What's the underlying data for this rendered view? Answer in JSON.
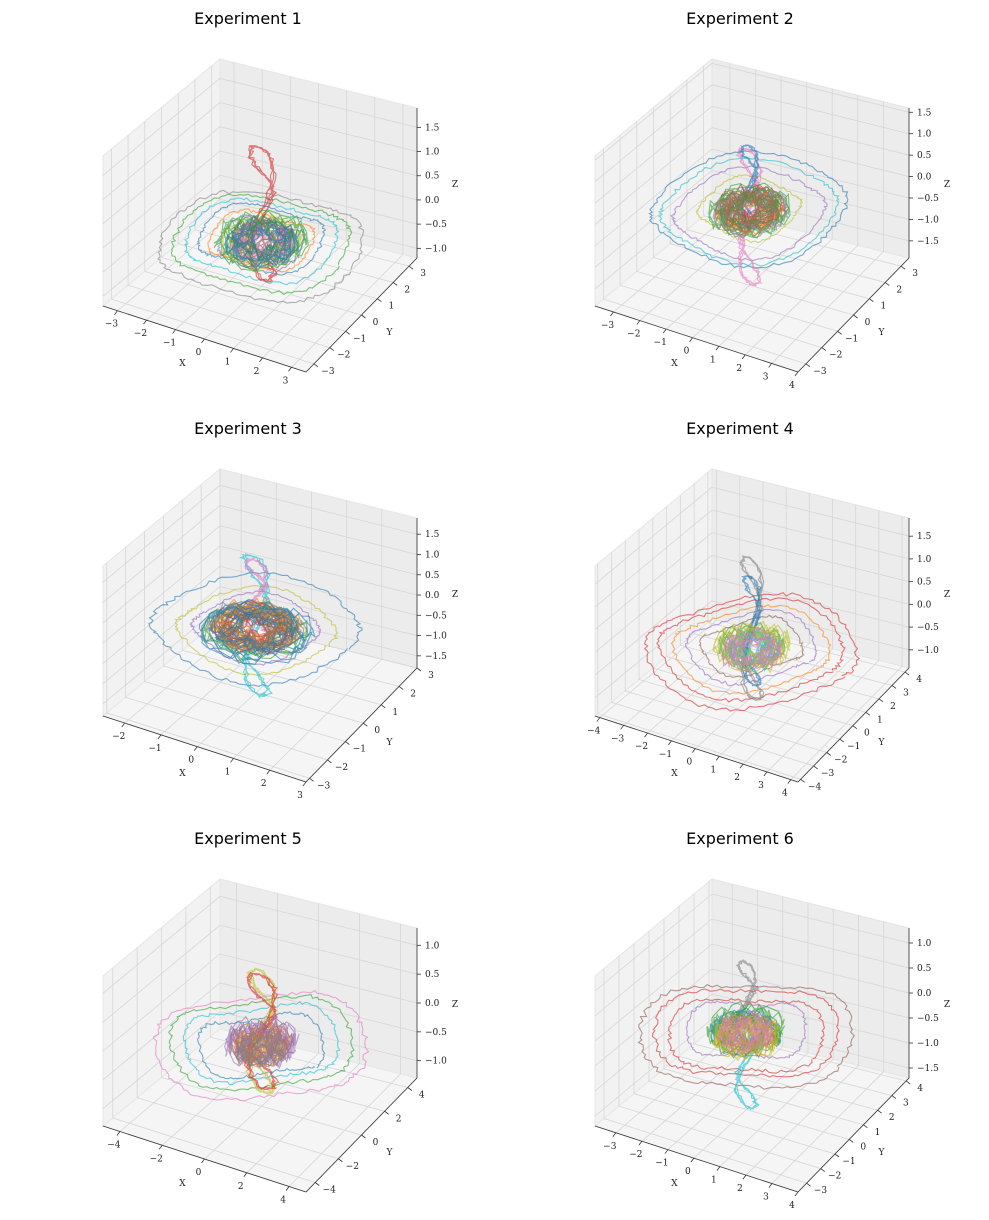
{
  "figure": {
    "panel_count": 6
  },
  "chart_data": [
    {
      "type": "line3d",
      "title": "Experiment 1",
      "xlabel": "X",
      "ylabel": "Y",
      "zlabel": "Z",
      "xticks": [
        -3,
        -2,
        -1,
        0,
        1,
        2,
        3
      ],
      "yticks": [
        -3,
        -2,
        -1,
        0,
        1,
        2,
        3
      ],
      "zticks": [
        -1.0,
        -0.5,
        0.0,
        0.5,
        1.0,
        1.5
      ],
      "xlim": [
        -3.5,
        3.5
      ],
      "ylim": [
        -3.5,
        3.5
      ],
      "zlim": [
        -1.2,
        1.9
      ],
      "series": [
        {
          "color": "#7f7f7f",
          "kind": "ring",
          "radius": 3.1,
          "z": -0.35
        },
        {
          "color": "#2ca02c",
          "kind": "ring",
          "radius": 2.7,
          "z": -0.3
        },
        {
          "color": "#17becf",
          "kind": "ring",
          "radius": 2.3,
          "z": -0.25
        },
        {
          "color": "#1f77b4",
          "kind": "ring",
          "radius": 1.9,
          "z": -0.2
        },
        {
          "color": "#ff7f0e",
          "kind": "ring",
          "radius": 1.6,
          "z": -0.25
        },
        {
          "color": "#9467bd",
          "kind": "ring",
          "radius": 1.3,
          "z": -0.3
        },
        {
          "color": "#d62728",
          "kind": "plume",
          "radius": 0.45,
          "zmin": -1.0,
          "zmax": 1.6
        },
        {
          "color": "#bcbd22",
          "kind": "blob",
          "radius": 1.2,
          "z": -0.3
        },
        {
          "color": "#8c564b",
          "kind": "blob",
          "radius": 0.9,
          "z": -0.2
        },
        {
          "color": "#e377c2",
          "kind": "blob",
          "radius": 1.0,
          "z": -0.35
        },
        {
          "color": "#2ca02c",
          "kind": "blob",
          "radius": 1.4,
          "z": -0.25
        },
        {
          "color": "#1f77b4",
          "kind": "blob",
          "radius": 1.1,
          "z": -0.3
        }
      ]
    },
    {
      "type": "line3d",
      "title": "Experiment 2",
      "xlabel": "X",
      "ylabel": "Y",
      "zlabel": "Z",
      "xticks": [
        -3,
        -2,
        -1,
        0,
        1,
        2,
        3,
        4
      ],
      "yticks": [
        -3,
        -2,
        -1,
        0,
        1,
        2,
        3
      ],
      "zticks": [
        -1.5,
        -1.0,
        -0.5,
        0.0,
        0.5,
        1.0,
        1.5
      ],
      "xlim": [
        -3.7,
        4.0
      ],
      "ylim": [
        -3.5,
        3.5
      ],
      "zlim": [
        -1.9,
        1.6
      ],
      "series": [
        {
          "color": "#1f77b4",
          "kind": "ring",
          "radius": 3.2,
          "z": -0.1
        },
        {
          "color": "#17becf",
          "kind": "ring",
          "radius": 2.9,
          "z": -0.15
        },
        {
          "color": "#9467bd",
          "kind": "ring",
          "radius": 2.5,
          "z": -0.2
        },
        {
          "color": "#bcbd22",
          "kind": "ring",
          "radius": 1.7,
          "z": -0.1
        },
        {
          "color": "#e377c2",
          "kind": "plume",
          "radius": 0.4,
          "zmin": -1.8,
          "zmax": 1.2
        },
        {
          "color": "#1f77b4",
          "kind": "plume",
          "radius": 0.3,
          "zmin": -0.5,
          "zmax": 1.3
        },
        {
          "color": "#d62728",
          "kind": "blob",
          "radius": 1.1,
          "z": -0.1
        },
        {
          "color": "#ff7f0e",
          "kind": "blob",
          "radius": 1.0,
          "z": -0.2
        },
        {
          "color": "#8c564b",
          "kind": "blob",
          "radius": 0.9,
          "z": -0.1
        },
        {
          "color": "#2ca02c",
          "kind": "blob",
          "radius": 1.3,
          "z": -0.15
        },
        {
          "color": "#7f7f7f",
          "kind": "blob",
          "radius": 1.2,
          "z": -0.2
        }
      ]
    },
    {
      "type": "line3d",
      "title": "Experiment 3",
      "xlabel": "X",
      "ylabel": "Y",
      "zlabel": "Z",
      "xticks": [
        -2,
        -1,
        0,
        1,
        2,
        3
      ],
      "yticks": [
        -3,
        -2,
        -1,
        0,
        1,
        2,
        3
      ],
      "zticks": [
        -1.5,
        -1.0,
        -0.5,
        0.0,
        0.5,
        1.0,
        1.5
      ],
      "xlim": [
        -2.6,
        3.0
      ],
      "ylim": [
        -3.2,
        3.0
      ],
      "zlim": [
        -1.8,
        1.9
      ],
      "series": [
        {
          "color": "#1f77b4",
          "kind": "ring",
          "radius": 2.6,
          "z": -0.2
        },
        {
          "color": "#bcbd22",
          "kind": "ring",
          "radius": 2.0,
          "z": -0.25
        },
        {
          "color": "#9467bd",
          "kind": "ring",
          "radius": 1.6,
          "z": -0.2
        },
        {
          "color": "#17becf",
          "kind": "plume",
          "radius": 0.35,
          "zmin": -1.8,
          "zmax": 1.5
        },
        {
          "color": "#e377c2",
          "kind": "plume",
          "radius": 0.3,
          "zmin": -0.3,
          "zmax": 1.4
        },
        {
          "color": "#d62728",
          "kind": "blob",
          "radius": 1.0,
          "z": -0.2
        },
        {
          "color": "#2ca02c",
          "kind": "blob",
          "radius": 1.3,
          "z": -0.3
        },
        {
          "color": "#ff7f0e",
          "kind": "blob",
          "radius": 1.1,
          "z": -0.15
        },
        {
          "color": "#8c564b",
          "kind": "blob",
          "radius": 0.9,
          "z": -0.25
        },
        {
          "color": "#7f7f7f",
          "kind": "blob",
          "radius": 1.2,
          "z": -0.2
        },
        {
          "color": "#1f77b4",
          "kind": "blob",
          "radius": 1.4,
          "z": -0.3
        }
      ]
    },
    {
      "type": "line3d",
      "title": "Experiment 4",
      "xlabel": "X",
      "ylabel": "Y",
      "zlabel": "Z",
      "xticks": [
        -4,
        -3,
        -2,
        -1,
        0,
        1,
        2,
        3,
        4
      ],
      "yticks": [
        -4,
        -3,
        -2,
        -1,
        0,
        1,
        2,
        3,
        4
      ],
      "zticks": [
        -1.0,
        -0.5,
        0.0,
        0.5,
        1.0,
        1.5
      ],
      "xlim": [
        -4.2,
        4.3
      ],
      "ylim": [
        -4.2,
        4.3
      ],
      "zlim": [
        -1.4,
        1.9
      ],
      "series": [
        {
          "color": "#d62728",
          "kind": "ring",
          "radius": 3.9,
          "z": -0.4
        },
        {
          "color": "#d62728",
          "kind": "ring",
          "radius": 3.4,
          "z": -0.35
        },
        {
          "color": "#ff7f0e",
          "kind": "ring",
          "radius": 2.9,
          "z": -0.35
        },
        {
          "color": "#9467bd",
          "kind": "ring",
          "radius": 2.4,
          "z": -0.3
        },
        {
          "color": "#8c564b",
          "kind": "ring",
          "radius": 1.9,
          "z": -0.3
        },
        {
          "color": "#7f7f7f",
          "kind": "plume",
          "radius": 0.45,
          "zmin": -1.4,
          "zmax": 1.6
        },
        {
          "color": "#1f77b4",
          "kind": "plume",
          "radius": 0.35,
          "zmin": -1.1,
          "zmax": 1.2
        },
        {
          "color": "#2ca02c",
          "kind": "blob",
          "radius": 1.2,
          "z": -0.3
        },
        {
          "color": "#17becf",
          "kind": "blob",
          "radius": 1.0,
          "z": -0.35
        },
        {
          "color": "#bcbd22",
          "kind": "blob",
          "radius": 1.4,
          "z": -0.3
        },
        {
          "color": "#e377c2",
          "kind": "blob",
          "radius": 1.1,
          "z": -0.4
        }
      ]
    },
    {
      "type": "line3d",
      "title": "Experiment 5",
      "xlabel": "X",
      "ylabel": "Y",
      "zlabel": "Z",
      "xticks": [
        -4,
        -2,
        0,
        2,
        4
      ],
      "yticks": [
        -4,
        -2,
        0,
        2,
        4
      ],
      "zticks": [
        -1.0,
        -0.5,
        0.0,
        0.5,
        1.0
      ],
      "xlim": [
        -4.8,
        4.8
      ],
      "ylim": [
        -4.8,
        4.8
      ],
      "zlim": [
        -1.3,
        1.3
      ],
      "series": [
        {
          "color": "#e377c2",
          "kind": "ring",
          "radius": 4.4,
          "z": -0.25
        },
        {
          "color": "#2ca02c",
          "kind": "ring",
          "radius": 3.8,
          "z": -0.2
        },
        {
          "color": "#17becf",
          "kind": "ring",
          "radius": 3.2,
          "z": -0.2
        },
        {
          "color": "#1f77b4",
          "kind": "ring",
          "radius": 2.6,
          "z": -0.25
        },
        {
          "color": "#bcbd22",
          "kind": "plume",
          "radius": 0.6,
          "zmin": -1.0,
          "zmax": 1.0
        },
        {
          "color": "#d62728",
          "kind": "plume",
          "radius": 0.7,
          "zmin": -0.9,
          "zmax": 0.9
        },
        {
          "color": "#8c564b",
          "kind": "blob",
          "radius": 1.3,
          "z": -0.2
        },
        {
          "color": "#ff7f0e",
          "kind": "blob",
          "radius": 1.1,
          "z": -0.25
        },
        {
          "color": "#9467bd",
          "kind": "blob",
          "radius": 1.5,
          "z": -0.2
        },
        {
          "color": "#7f7f7f",
          "kind": "blob",
          "radius": 1.0,
          "z": -0.3
        }
      ]
    },
    {
      "type": "line3d",
      "title": "Experiment 6",
      "xlabel": "X",
      "ylabel": "Y",
      "zlabel": "Z",
      "xticks": [
        -3,
        -2,
        -1,
        0,
        1,
        2,
        3,
        4
      ],
      "yticks": [
        -3,
        -2,
        -1,
        0,
        1,
        2,
        3,
        4
      ],
      "zticks": [
        -1.5,
        -1.0,
        -0.5,
        0.0,
        0.5,
        1.0
      ],
      "xlim": [
        -3.8,
        4.0
      ],
      "ylim": [
        -3.6,
        4.2
      ],
      "zlim": [
        -1.7,
        1.3
      ],
      "series": [
        {
          "color": "#8c564b",
          "kind": "ring",
          "radius": 3.6,
          "z": -0.2
        },
        {
          "color": "#d62728",
          "kind": "ring",
          "radius": 3.1,
          "z": -0.15
        },
        {
          "color": "#d62728",
          "kind": "ring",
          "radius": 2.6,
          "z": -0.2
        },
        {
          "color": "#9467bd",
          "kind": "ring",
          "radius": 2.0,
          "z": -0.1
        },
        {
          "color": "#7f7f7f",
          "kind": "plume",
          "radius": 0.35,
          "zmin": -0.3,
          "zmax": 1.2
        },
        {
          "color": "#17becf",
          "kind": "plume",
          "radius": 0.4,
          "zmin": -1.6,
          "zmax": 0.2
        },
        {
          "color": "#1f77b4",
          "kind": "blob",
          "radius": 1.2,
          "z": -0.15
        },
        {
          "color": "#ff7f0e",
          "kind": "blob",
          "radius": 1.0,
          "z": -0.2
        },
        {
          "color": "#2ca02c",
          "kind": "blob",
          "radius": 1.3,
          "z": -0.1
        },
        {
          "color": "#bcbd22",
          "kind": "blob",
          "radius": 1.1,
          "z": -0.25
        },
        {
          "color": "#e377c2",
          "kind": "blob",
          "radius": 0.9,
          "z": -0.15
        }
      ]
    }
  ]
}
